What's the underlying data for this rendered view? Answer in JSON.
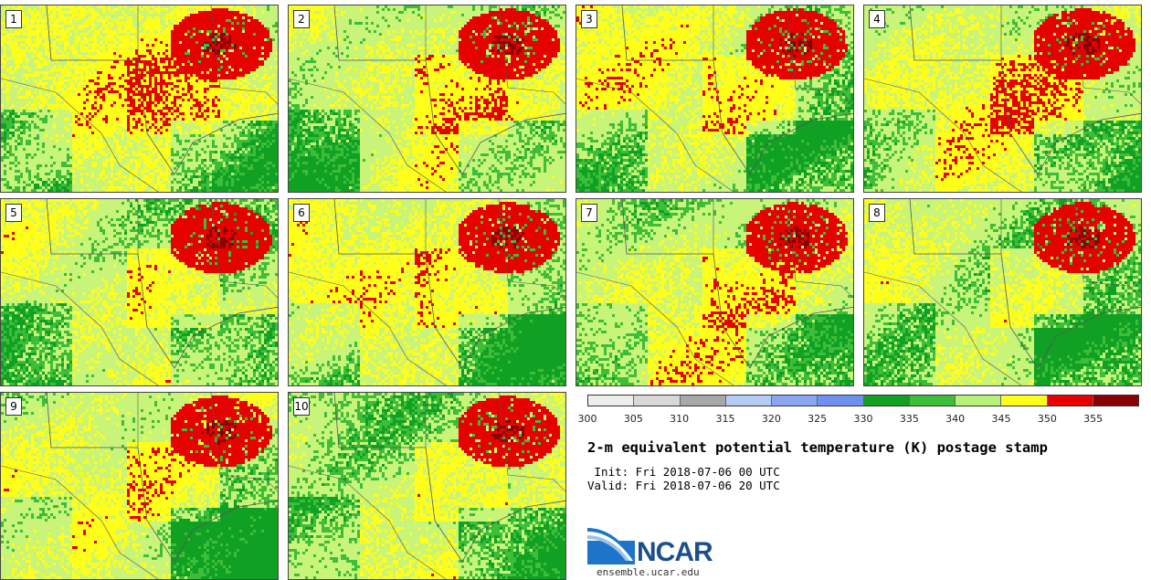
{
  "panels": [
    {
      "id": "1",
      "seed": 1
    },
    {
      "id": "2",
      "seed": 2
    },
    {
      "id": "3",
      "seed": 3
    },
    {
      "id": "4",
      "seed": 4
    },
    {
      "id": "5",
      "seed": 5
    },
    {
      "id": "6",
      "seed": 6
    },
    {
      "id": "7",
      "seed": 7
    },
    {
      "id": "8",
      "seed": 8
    },
    {
      "id": "9",
      "seed": 9
    },
    {
      "id": "10",
      "seed": 10
    }
  ],
  "legend": {
    "colors": [
      "#ededed",
      "#d8d8d8",
      "#a8a8a8",
      "#b4ccf4",
      "#8aa6f0",
      "#6e90f0",
      "#10a024",
      "#3ebe38",
      "#b6f27a",
      "#ffff1a",
      "#e60000",
      "#8b0000"
    ],
    "ticks": [
      "300",
      "305",
      "310",
      "315",
      "320",
      "325",
      "330",
      "335",
      "340",
      "345",
      "350",
      "355"
    ]
  },
  "title": "2-m equivalent potential temperature (K) postage stamp",
  "init": " Init: Fri 2018-07-06 00 UTC",
  "valid": "Valid: Fri 2018-07-06 20 UTC",
  "logo": {
    "name": "NCAR",
    "url": "ensemble.ucar.edu"
  }
}
